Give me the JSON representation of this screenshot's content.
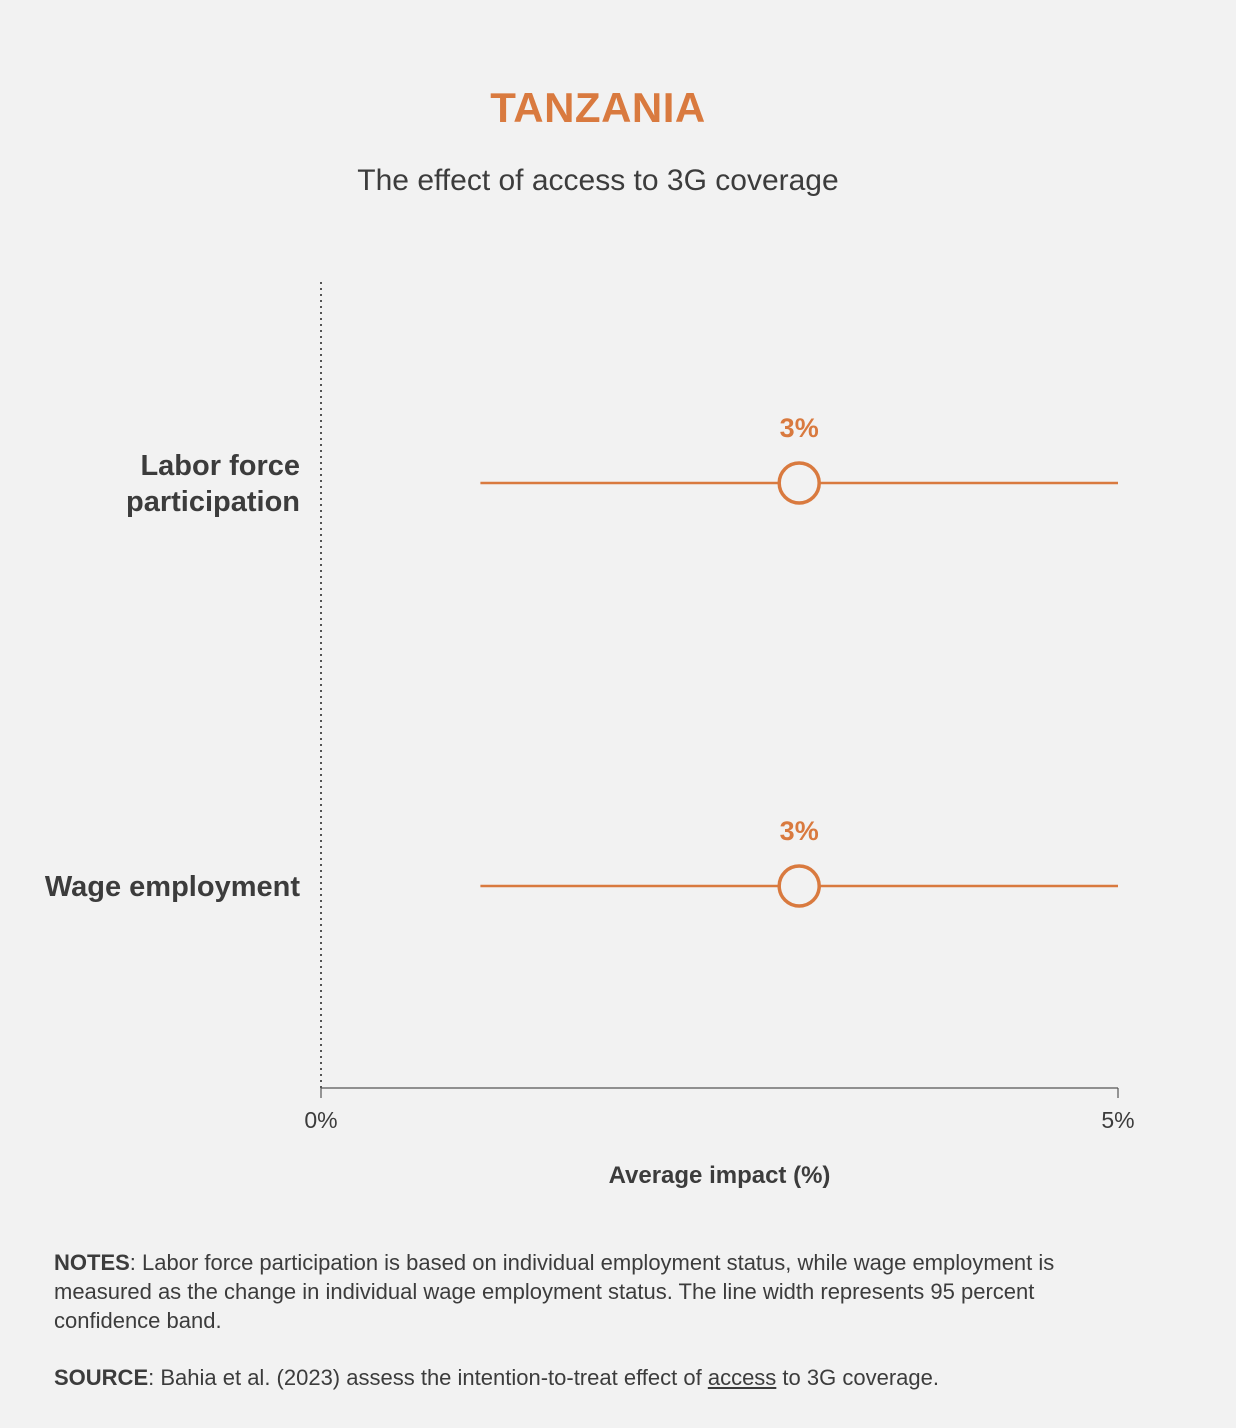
{
  "title": "TANZANIA",
  "subtitle": "The effect of access to 3G coverage",
  "colors": {
    "accent": "#d97a3f",
    "text": "#3c3c3c",
    "axis": "#555555",
    "background": "#f2f2f2"
  },
  "chart_data": {
    "type": "scatter",
    "xlabel": "Average impact (%)",
    "xlim": [
      0,
      5
    ],
    "x_ticks": [
      "0%",
      "5%"
    ],
    "reference_line_x": 0,
    "series": [
      {
        "category_lines": [
          "Labor force",
          "participation"
        ],
        "estimate": 3,
        "ci_low": 1,
        "ci_high": 5,
        "label": "3%"
      },
      {
        "category_lines": [
          "Wage employment"
        ],
        "estimate": 3,
        "ci_low": 1,
        "ci_high": 5,
        "label": "3%"
      }
    ]
  },
  "notes": {
    "label": "NOTES",
    "text": ": Labor force participation is based on individual employment status, while wage employment is measured as the change in individual wage employment status. The line width represents 95 percent confidence band."
  },
  "source": {
    "label": "SOURCE",
    "text_before": ": Bahia et al. (2023) assess the intention-to-treat effect of ",
    "link_text": "access",
    "text_after": " to 3G coverage."
  }
}
